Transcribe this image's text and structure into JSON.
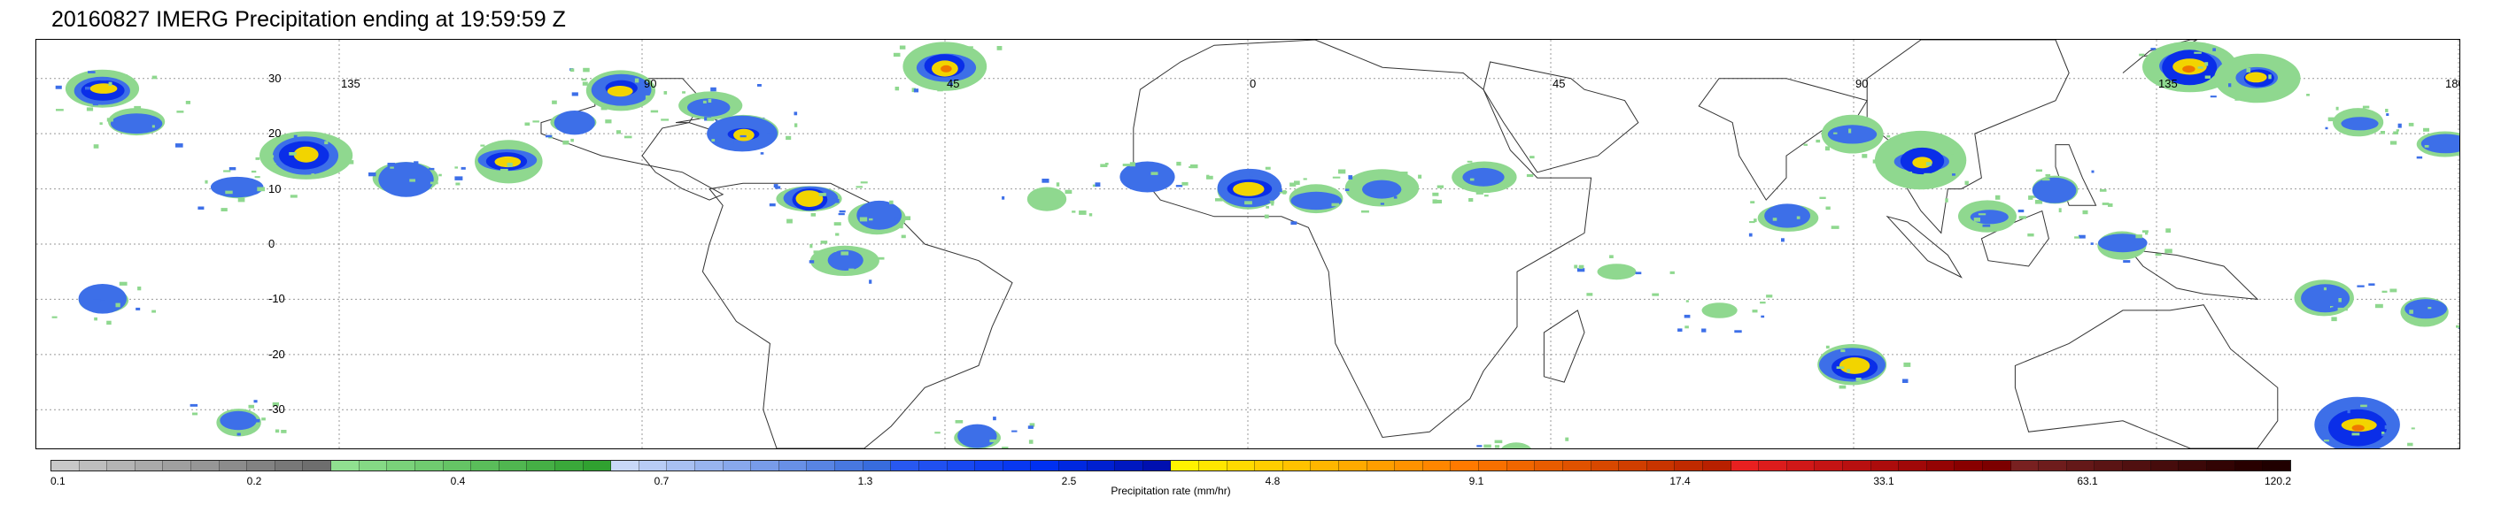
{
  "title": "20160827 IMERG Precipitation ending at 19:59:59 Z",
  "map": {
    "lat_labels": [
      "30",
      "20",
      "10",
      "0",
      "-10",
      "-20",
      "-30"
    ],
    "lon_labels": [
      "135",
      "90",
      "45",
      "0",
      "45",
      "90",
      "135",
      "180"
    ]
  },
  "colorbar": {
    "tick_labels": [
      "0.1",
      "0.2",
      "0.4",
      "0.7",
      "1.3",
      "2.5",
      "4.8",
      "9.1",
      "17.4",
      "33.1",
      "63.1",
      "120.2"
    ],
    "label": "Precipitation rate (mm/hr)",
    "colors": [
      "#c8c8c8",
      "#bebebe",
      "#b4b4b4",
      "#aaaaaa",
      "#a0a0a0",
      "#969696",
      "#8c8c8c",
      "#828282",
      "#787878",
      "#6e6e6e",
      "#90e090",
      "#85d985",
      "#7ad27a",
      "#70cb70",
      "#65c465",
      "#5abd5a",
      "#50b650",
      "#45af45",
      "#3aa83a",
      "#30a130",
      "#c8d8f8",
      "#b8ccf5",
      "#a8c0f2",
      "#98b4ef",
      "#88a8ec",
      "#789ce9",
      "#6890e6",
      "#5884e3",
      "#4878e0",
      "#386cdd",
      "#2858f0",
      "#2050f0",
      "#1848f0",
      "#1040f0",
      "#0838f0",
      "#0030f0",
      "#0028e0",
      "#0020d0",
      "#0018c0",
      "#0010b0",
      "#fff200",
      "#ffe600",
      "#ffda00",
      "#ffce00",
      "#ffc200",
      "#ffb600",
      "#ffaa00",
      "#ff9e00",
      "#ff9200",
      "#ff8600",
      "#ff7a00",
      "#f87000",
      "#f06600",
      "#e85c00",
      "#e05200",
      "#d84800",
      "#d03e00",
      "#c83400",
      "#c02a00",
      "#b82000",
      "#e82020",
      "#dc1c1c",
      "#d01818",
      "#c41414",
      "#b81010",
      "#ac0c0c",
      "#a00808",
      "#940404",
      "#880000",
      "#7c0000",
      "#782020",
      "#6e1c1c",
      "#641818",
      "#5a1414",
      "#501010",
      "#460c0c",
      "#3c0808",
      "#320404",
      "#280000",
      "#200000"
    ],
    "scale_note": "log"
  },
  "precip_cells": [
    {
      "lon": -170,
      "lat": 28,
      "intensity": 3
    },
    {
      "lon": -165,
      "lat": 22,
      "intensity": 2
    },
    {
      "lon": -150,
      "lat": 10,
      "intensity": 2
    },
    {
      "lon": -140,
      "lat": 16,
      "intensity": 3
    },
    {
      "lon": -125,
      "lat": 12,
      "intensity": 2
    },
    {
      "lon": -110,
      "lat": 15,
      "intensity": 3
    },
    {
      "lon": -100,
      "lat": 22,
      "intensity": 2
    },
    {
      "lon": -93,
      "lat": 28,
      "intensity": 3
    },
    {
      "lon": -80,
      "lat": 25,
      "intensity": 2
    },
    {
      "lon": -75,
      "lat": 20,
      "intensity": 3
    },
    {
      "lon": -65,
      "lat": 8,
      "intensity": 3
    },
    {
      "lon": -60,
      "lat": -3,
      "intensity": 2
    },
    {
      "lon": -55,
      "lat": 5,
      "intensity": 2
    },
    {
      "lon": -45,
      "lat": 32,
      "intensity": 4
    },
    {
      "lon": -30,
      "lat": 8,
      "intensity": 1
    },
    {
      "lon": -15,
      "lat": 12,
      "intensity": 2
    },
    {
      "lon": 0,
      "lat": 10,
      "intensity": 3
    },
    {
      "lon": 10,
      "lat": 8,
      "intensity": 2
    },
    {
      "lon": 20,
      "lat": 10,
      "intensity": 2
    },
    {
      "lon": 35,
      "lat": 12,
      "intensity": 2
    },
    {
      "lon": 55,
      "lat": -5,
      "intensity": 1
    },
    {
      "lon": 80,
      "lat": 5,
      "intensity": 2
    },
    {
      "lon": 90,
      "lat": 20,
      "intensity": 2
    },
    {
      "lon": 100,
      "lat": 15,
      "intensity": 3
    },
    {
      "lon": 110,
      "lat": 5,
      "intensity": 2
    },
    {
      "lon": 120,
      "lat": 10,
      "intensity": 2
    },
    {
      "lon": 130,
      "lat": 0,
      "intensity": 2
    },
    {
      "lon": 140,
      "lat": 32,
      "intensity": 4
    },
    {
      "lon": 150,
      "lat": 30,
      "intensity": 3
    },
    {
      "lon": 165,
      "lat": 22,
      "intensity": 2
    },
    {
      "lon": 90,
      "lat": -22,
      "intensity": 3
    },
    {
      "lon": 165,
      "lat": -33,
      "intensity": 4
    },
    {
      "lon": -170,
      "lat": -10,
      "intensity": 2
    },
    {
      "lon": -150,
      "lat": -32,
      "intensity": 2
    },
    {
      "lon": -40,
      "lat": -35,
      "intensity": 2
    },
    {
      "lon": 40,
      "lat": -38,
      "intensity": 1
    },
    {
      "lon": 70,
      "lat": -12,
      "intensity": 1
    },
    {
      "lon": 160,
      "lat": -10,
      "intensity": 2
    },
    {
      "lon": 175,
      "lat": -12,
      "intensity": 2
    },
    {
      "lon": 178,
      "lat": 18,
      "intensity": 2
    }
  ]
}
